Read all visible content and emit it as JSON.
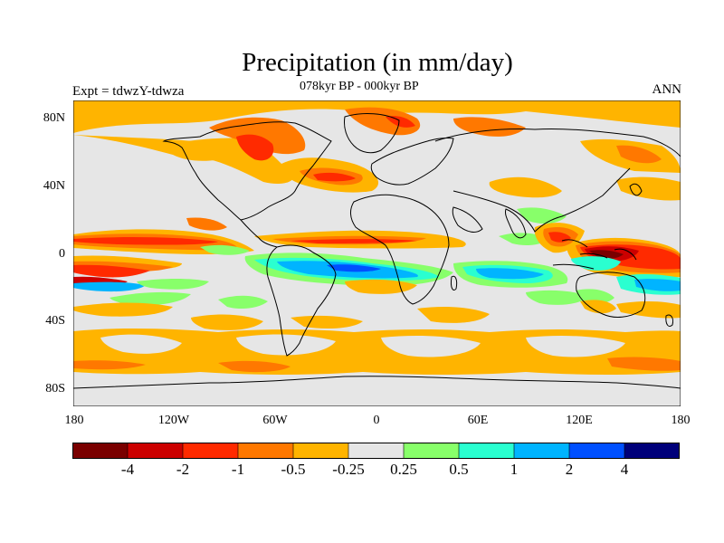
{
  "title": "Precipitation (in mm/day)",
  "subtitle_left": "Expt = tdwzY-tdwza",
  "subtitle_center": "078kyr BP - 000kyr BP",
  "subtitle_right": "ANN",
  "map": {
    "background_color": "#e6e6e6",
    "lat_ticks": [
      "80N",
      "40N",
      "0",
      "40S",
      "80S"
    ],
    "lon_ticks": [
      "180",
      "120W",
      "60W",
      "0",
      "60E",
      "120E",
      "180"
    ]
  },
  "colorbar": {
    "colors": [
      "#7a0000",
      "#cc0000",
      "#ff2a00",
      "#ff7800",
      "#ffb400",
      "#e6e6e6",
      "#88ff6a",
      "#2affd0",
      "#00b4ff",
      "#0050ff",
      "#00007a"
    ],
    "labels": [
      "-4",
      "-2",
      "-1",
      "-0.5",
      "-0.25",
      "0.25",
      "0.5",
      "1",
      "2",
      "4"
    ]
  }
}
